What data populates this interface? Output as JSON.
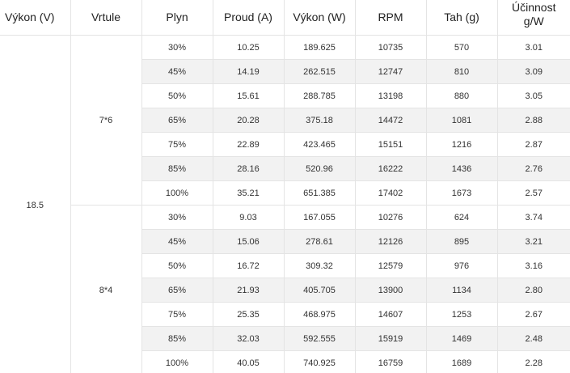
{
  "table": {
    "headers": [
      "Výkon (V)",
      "Vrtule",
      "Plyn",
      "Proud (A)",
      "Výkon (W)",
      "RPM",
      "Tah (g)",
      "Účinnost g/W"
    ],
    "voltage": "18.5",
    "groups": [
      {
        "propeller": "7*6",
        "rows": [
          [
            "30%",
            "10.25",
            "189.625",
            "10735",
            "570",
            "3.01"
          ],
          [
            "45%",
            "14.19",
            "262.515",
            "12747",
            "810",
            "3.09"
          ],
          [
            "50%",
            "15.61",
            "288.785",
            "13198",
            "880",
            "3.05"
          ],
          [
            "65%",
            "20.28",
            "375.18",
            "14472",
            "1081",
            "2.88"
          ],
          [
            "75%",
            "22.89",
            "423.465",
            "15151",
            "1216",
            "2.87"
          ],
          [
            "85%",
            "28.16",
            "520.96",
            "16222",
            "1436",
            "2.76"
          ],
          [
            "100%",
            "35.21",
            "651.385",
            "17402",
            "1673",
            "2.57"
          ]
        ]
      },
      {
        "propeller": "8*4",
        "rows": [
          [
            "30%",
            "9.03",
            "167.055",
            "10276",
            "624",
            "3.74"
          ],
          [
            "45%",
            "15.06",
            "278.61",
            "12126",
            "895",
            "3.21"
          ],
          [
            "50%",
            "16.72",
            "309.32",
            "12579",
            "976",
            "3.16"
          ],
          [
            "65%",
            "21.93",
            "405.705",
            "13900",
            "1134",
            "2.80"
          ],
          [
            "75%",
            "25.35",
            "468.975",
            "14607",
            "1253",
            "2.67"
          ],
          [
            "85%",
            "32.03",
            "592.555",
            "15919",
            "1469",
            "2.48"
          ],
          [
            "100%",
            "40.05",
            "740.925",
            "16759",
            "1689",
            "2.28"
          ]
        ]
      }
    ]
  }
}
